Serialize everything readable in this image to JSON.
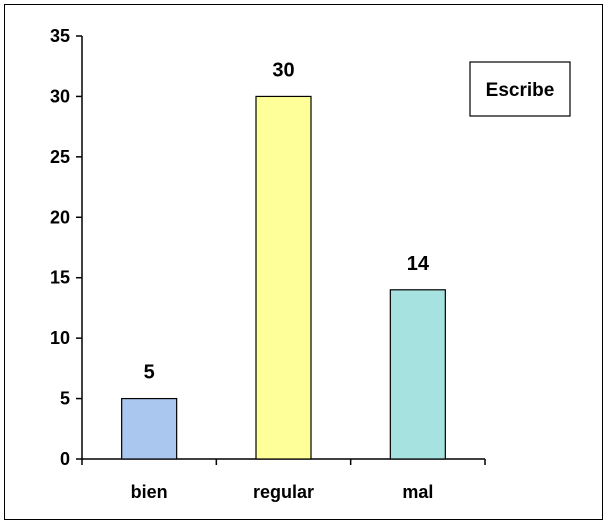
{
  "chart_data": {
    "type": "bar",
    "categories": [
      "bien",
      "regular",
      "mal"
    ],
    "values": [
      5,
      30,
      14
    ],
    "data_labels": [
      "5",
      "30",
      "14"
    ],
    "colors": [
      "#a9c7ef",
      "#ffff99",
      "#a6e3e0"
    ],
    "ylim": [
      0,
      35
    ],
    "yticks": [
      0,
      5,
      10,
      15,
      20,
      25,
      30,
      35
    ],
    "legend": {
      "label": "Escribe",
      "placement": "top-right"
    },
    "grid": false
  }
}
